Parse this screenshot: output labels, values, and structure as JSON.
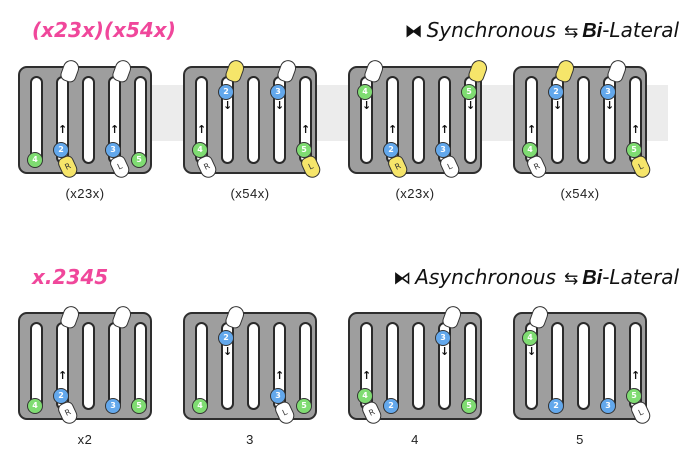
{
  "sections": [
    {
      "pattern": "(x23x)(x54x)",
      "mode_symbol": "⧓",
      "mode_word": "Synchronous",
      "arrow_symbol": "⇆",
      "lateral_prefix": "Bi",
      "lateral_suffix": "-Lateral",
      "panels": [
        {
          "caption": "(x23x)",
          "balls": [
            {
              "label": "4",
              "color": "g",
              "slot": 0,
              "pos": "bottom"
            },
            {
              "label": "2",
              "color": "b",
              "slot": 1,
              "pos": "lower"
            },
            {
              "label": "3",
              "color": "b",
              "slot": 3,
              "pos": "lower"
            },
            {
              "label": "5",
              "color": "g",
              "slot": 4,
              "pos": "bottom"
            }
          ],
          "hands": [
            {
              "label": "",
              "color": "w",
              "slot": 1,
              "pos": "top"
            },
            {
              "label": "",
              "color": "w",
              "slot": 3,
              "pos": "top"
            },
            {
              "label": "R",
              "color": "y",
              "slot": 1,
              "pos": "bottom"
            },
            {
              "label": "L",
              "color": "w",
              "slot": 3,
              "pos": "bottom"
            }
          ],
          "arrows": [
            {
              "dir": "up",
              "slot": 1
            },
            {
              "dir": "up",
              "slot": 3
            }
          ]
        },
        {
          "caption": "(x54x)",
          "balls": [
            {
              "label": "2",
              "color": "b",
              "slot": 1,
              "pos": "top"
            },
            {
              "label": "3",
              "color": "b",
              "slot": 3,
              "pos": "top"
            },
            {
              "label": "4",
              "color": "g",
              "slot": 0,
              "pos": "lower"
            },
            {
              "label": "5",
              "color": "g",
              "slot": 4,
              "pos": "lower"
            }
          ],
          "hands": [
            {
              "label": "",
              "color": "y",
              "slot": 1,
              "pos": "top"
            },
            {
              "label": "",
              "color": "w",
              "slot": 3,
              "pos": "top"
            },
            {
              "label": "R",
              "color": "w",
              "slot": 0,
              "pos": "bottom"
            },
            {
              "label": "L",
              "color": "y",
              "slot": 4,
              "pos": "bottom"
            }
          ],
          "arrows": [
            {
              "dir": "down",
              "slot": 1
            },
            {
              "dir": "down",
              "slot": 3
            },
            {
              "dir": "up",
              "slot": 0
            },
            {
              "dir": "up",
              "slot": 4
            }
          ]
        },
        {
          "caption": "(x23x)",
          "balls": [
            {
              "label": "4",
              "color": "g",
              "slot": 0,
              "pos": "top"
            },
            {
              "label": "5",
              "color": "g",
              "slot": 4,
              "pos": "top"
            },
            {
              "label": "2",
              "color": "b",
              "slot": 1,
              "pos": "lower"
            },
            {
              "label": "3",
              "color": "b",
              "slot": 3,
              "pos": "lower"
            }
          ],
          "hands": [
            {
              "label": "",
              "color": "w",
              "slot": 0,
              "pos": "top"
            },
            {
              "label": "",
              "color": "y",
              "slot": 4,
              "pos": "top"
            },
            {
              "label": "R",
              "color": "y",
              "slot": 1,
              "pos": "bottom"
            },
            {
              "label": "L",
              "color": "w",
              "slot": 3,
              "pos": "bottom"
            }
          ],
          "arrows": [
            {
              "dir": "down",
              "slot": 0
            },
            {
              "dir": "down",
              "slot": 4
            },
            {
              "dir": "up",
              "slot": 1
            },
            {
              "dir": "up",
              "slot": 3
            }
          ]
        },
        {
          "caption": "(x54x)",
          "balls": [
            {
              "label": "2",
              "color": "b",
              "slot": 1,
              "pos": "top"
            },
            {
              "label": "3",
              "color": "b",
              "slot": 3,
              "pos": "top"
            },
            {
              "label": "4",
              "color": "g",
              "slot": 0,
              "pos": "lower"
            },
            {
              "label": "5",
              "color": "g",
              "slot": 4,
              "pos": "lower"
            }
          ],
          "hands": [
            {
              "label": "",
              "color": "y",
              "slot": 1,
              "pos": "top"
            },
            {
              "label": "",
              "color": "w",
              "slot": 3,
              "pos": "top"
            },
            {
              "label": "R",
              "color": "w",
              "slot": 0,
              "pos": "bottom"
            },
            {
              "label": "L",
              "color": "y",
              "slot": 4,
              "pos": "bottom"
            }
          ],
          "arrows": [
            {
              "dir": "down",
              "slot": 1
            },
            {
              "dir": "down",
              "slot": 3
            },
            {
              "dir": "up",
              "slot": 0
            },
            {
              "dir": "up",
              "slot": 4
            }
          ]
        }
      ]
    },
    {
      "pattern": "x.2345",
      "mode_symbol": "⧑",
      "mode_word": "Asynchronous",
      "arrow_symbol": "⇆",
      "lateral_prefix": "Bi",
      "lateral_suffix": "-Lateral",
      "panels": [
        {
          "caption": "x2",
          "balls": [
            {
              "label": "4",
              "color": "g",
              "slot": 0,
              "pos": "bottom"
            },
            {
              "label": "2",
              "color": "b",
              "slot": 1,
              "pos": "lower"
            },
            {
              "label": "3",
              "color": "b",
              "slot": 3,
              "pos": "bottom"
            },
            {
              "label": "5",
              "color": "g",
              "slot": 4,
              "pos": "bottom"
            }
          ],
          "hands": [
            {
              "label": "",
              "color": "w",
              "slot": 1,
              "pos": "top"
            },
            {
              "label": "",
              "color": "w",
              "slot": 3,
              "pos": "top"
            },
            {
              "label": "R",
              "color": "w",
              "slot": 1,
              "pos": "bottom"
            }
          ],
          "arrows": [
            {
              "dir": "up",
              "slot": 1
            }
          ]
        },
        {
          "caption": "3",
          "balls": [
            {
              "label": "2",
              "color": "b",
              "slot": 1,
              "pos": "top"
            },
            {
              "label": "4",
              "color": "g",
              "slot": 0,
              "pos": "bottom"
            },
            {
              "label": "3",
              "color": "b",
              "slot": 3,
              "pos": "lower"
            },
            {
              "label": "5",
              "color": "g",
              "slot": 4,
              "pos": "bottom"
            }
          ],
          "hands": [
            {
              "label": "",
              "color": "w",
              "slot": 1,
              "pos": "top"
            },
            {
              "label": "L",
              "color": "w",
              "slot": 3,
              "pos": "bottom"
            }
          ],
          "arrows": [
            {
              "dir": "down",
              "slot": 1
            },
            {
              "dir": "up",
              "slot": 3
            }
          ]
        },
        {
          "caption": "4",
          "balls": [
            {
              "label": "3",
              "color": "b",
              "slot": 3,
              "pos": "top"
            },
            {
              "label": "4",
              "color": "g",
              "slot": 0,
              "pos": "lower"
            },
            {
              "label": "2",
              "color": "b",
              "slot": 1,
              "pos": "bottom"
            },
            {
              "label": "5",
              "color": "g",
              "slot": 4,
              "pos": "bottom"
            }
          ],
          "hands": [
            {
              "label": "",
              "color": "w",
              "slot": 3,
              "pos": "top"
            },
            {
              "label": "R",
              "color": "w",
              "slot": 0,
              "pos": "bottom"
            }
          ],
          "arrows": [
            {
              "dir": "down",
              "slot": 3
            },
            {
              "dir": "up",
              "slot": 0
            }
          ]
        },
        {
          "caption": "5",
          "balls": [
            {
              "label": "4",
              "color": "g",
              "slot": 0,
              "pos": "top"
            },
            {
              "label": "2",
              "color": "b",
              "slot": 1,
              "pos": "bottom"
            },
            {
              "label": "3",
              "color": "b",
              "slot": 3,
              "pos": "bottom"
            },
            {
              "label": "5",
              "color": "g",
              "slot": 4,
              "pos": "lower"
            }
          ],
          "hands": [
            {
              "label": "",
              "color": "w",
              "slot": 0,
              "pos": "top"
            },
            {
              "label": "L",
              "color": "w",
              "slot": 4,
              "pos": "bottom"
            }
          ],
          "arrows": [
            {
              "dir": "down",
              "slot": 0
            },
            {
              "dir": "up",
              "slot": 4
            }
          ]
        }
      ]
    }
  ]
}
